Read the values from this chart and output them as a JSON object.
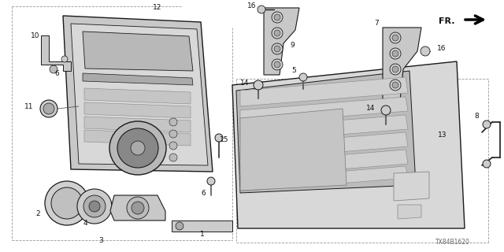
{
  "bg_color": "#ffffff",
  "fig_width": 6.4,
  "fig_height": 3.2,
  "dpi": 100,
  "watermark": "TX84B1620",
  "fr_label": "FR.",
  "line_color": "#1a1a1a",
  "text_color": "#111111",
  "gray_light": "#d8d8d8",
  "gray_mid": "#b8b8b8",
  "gray_dark": "#888888",
  "gray_fill": "#c8c8c8"
}
